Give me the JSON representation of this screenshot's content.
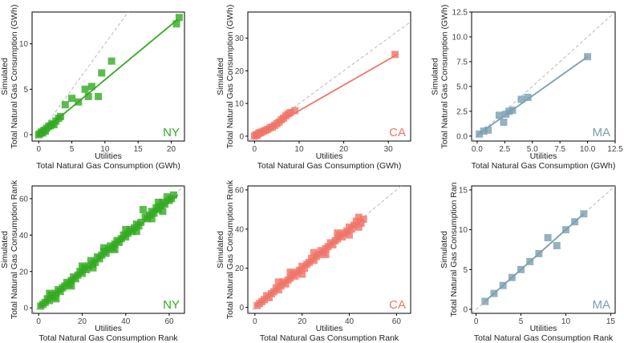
{
  "chart_data": [
    {
      "type": "scatter",
      "state": "NY",
      "color": "#33aa22",
      "xlabel_top": "Utilities",
      "xlabel_bottom": "Total Natural Gas Consumption (GWh)",
      "ylabel_top": "Simulated",
      "ylabel_bottom": "Total Natural Gas Consumption (GWh)",
      "xlim": [
        -1,
        22
      ],
      "ylim": [
        -0.7,
        13.5
      ],
      "xticks": [
        0,
        5,
        10,
        15,
        20
      ],
      "yticks": [
        0,
        5,
        10
      ],
      "fit": [
        [
          0,
          0
        ],
        [
          21,
          12.7
        ]
      ],
      "points": [
        [
          0,
          0
        ],
        [
          0.2,
          0.1
        ],
        [
          0.4,
          0.3
        ],
        [
          0.6,
          0.2
        ],
        [
          0.8,
          0.5
        ],
        [
          1,
          0.4
        ],
        [
          1.2,
          0.7
        ],
        [
          1.5,
          0.9
        ],
        [
          1.8,
          1.0
        ],
        [
          2,
          1.2
        ],
        [
          2.3,
          1.1
        ],
        [
          2.6,
          1.5
        ],
        [
          3,
          1.8
        ],
        [
          3.3,
          2.0
        ],
        [
          4,
          3.3
        ],
        [
          5,
          4.0
        ],
        [
          6,
          3.6
        ],
        [
          7,
          5.0
        ],
        [
          7.5,
          4.2
        ],
        [
          8,
          5.3
        ],
        [
          9,
          4.2
        ],
        [
          9.5,
          6.8
        ],
        [
          11,
          8.1
        ],
        [
          20.8,
          12.2
        ],
        [
          21.2,
          12.9
        ]
      ]
    },
    {
      "type": "scatter",
      "state": "CA",
      "color": "#f07468",
      "xlabel_top": "Utilities",
      "xlabel_bottom": "Total Natural Gas Consumption (GWh)",
      "ylabel_top": "Simulated",
      "ylabel_bottom": "Total Natural Gas Consumption (GWh)",
      "xlim": [
        -1.5,
        35
      ],
      "ylim": [
        -1.5,
        38
      ],
      "xticks": [
        0,
        10,
        20,
        30
      ],
      "yticks": [
        0,
        10,
        20,
        30
      ],
      "fit": [
        [
          0,
          0
        ],
        [
          32,
          25
        ]
      ],
      "points": [
        [
          0,
          0
        ],
        [
          0.3,
          0.4
        ],
        [
          0.6,
          0.3
        ],
        [
          0.9,
          0.8
        ],
        [
          1.2,
          1.0
        ],
        [
          1.5,
          1.2
        ],
        [
          2,
          1.5
        ],
        [
          2.5,
          1.8
        ],
        [
          3,
          2.1
        ],
        [
          3.5,
          2.6
        ],
        [
          4,
          2.8
        ],
        [
          4.5,
          3.3
        ],
        [
          5,
          3.8
        ],
        [
          5.5,
          4.3
        ],
        [
          6,
          5.0
        ],
        [
          6.5,
          5.5
        ],
        [
          7,
          6.2
        ],
        [
          7.5,
          6.8
        ],
        [
          8,
          7.2
        ],
        [
          9,
          7.8
        ],
        [
          31.5,
          25
        ]
      ]
    },
    {
      "type": "scatter",
      "state": "MA",
      "color": "#7a9fb0",
      "xlabel_top": "Utilities",
      "xlabel_bottom": "Total Natural Gas Consumption (GWh)",
      "ylabel_top": "Simulated",
      "ylabel_bottom": "Total Natural Gas Consumption (GWh)",
      "xlim": [
        -0.5,
        12.5
      ],
      "ylim": [
        -0.5,
        12.5
      ],
      "xticks": [
        0.0,
        2.5,
        5.0,
        7.5,
        10.0,
        12.5
      ],
      "yticks": [
        0.0,
        2.5,
        5.0,
        7.5,
        10.0,
        12.5
      ],
      "tick_decimals": 1,
      "fit": [
        [
          0,
          0.1
        ],
        [
          10,
          8.0
        ]
      ],
      "points": [
        [
          0.2,
          0.2
        ],
        [
          0.6,
          0.5
        ],
        [
          1.0,
          0.6
        ],
        [
          2.0,
          2.1
        ],
        [
          2.4,
          1.4
        ],
        [
          2.6,
          2.2
        ],
        [
          2.9,
          2.5
        ],
        [
          3.2,
          2.6
        ],
        [
          4.0,
          3.7
        ],
        [
          4.6,
          3.9
        ],
        [
          10.0,
          8.0
        ]
      ]
    },
    {
      "type": "scatter",
      "state": "NY",
      "color": "#33aa22",
      "xlabel_top": "Utilities",
      "xlabel_bottom": "Total Natural Gas Consumption Rank",
      "ylabel_top": "Simulated",
      "ylabel_bottom": "Total Natural Gas Consumption Rank",
      "xlim": [
        -3,
        67
      ],
      "ylim": [
        -3,
        67
      ],
      "xticks": [
        0,
        20,
        40,
        60
      ],
      "yticks": [
        0,
        20,
        40,
        60
      ],
      "fit": [
        [
          0,
          1
        ],
        [
          64,
          62
        ]
      ],
      "points": [
        [
          1,
          1
        ],
        [
          2,
          2
        ],
        [
          3,
          3
        ],
        [
          4,
          5
        ],
        [
          5,
          4
        ],
        [
          6,
          7
        ],
        [
          7,
          6
        ],
        [
          8,
          8
        ],
        [
          9,
          10
        ],
        [
          10,
          9
        ],
        [
          11,
          11
        ],
        [
          12,
          12
        ],
        [
          13,
          14
        ],
        [
          14,
          13
        ],
        [
          15,
          15
        ],
        [
          16,
          17
        ],
        [
          17,
          16
        ],
        [
          18,
          18
        ],
        [
          19,
          20
        ],
        [
          20,
          19
        ],
        [
          21,
          22
        ],
        [
          22,
          21
        ],
        [
          23,
          23
        ],
        [
          24,
          26
        ],
        [
          25,
          24
        ],
        [
          26,
          25
        ],
        [
          27,
          28
        ],
        [
          28,
          27
        ],
        [
          29,
          29
        ],
        [
          30,
          31
        ],
        [
          31,
          30
        ],
        [
          32,
          32
        ],
        [
          33,
          34
        ],
        [
          34,
          33
        ],
        [
          35,
          35
        ],
        [
          36,
          37
        ],
        [
          37,
          36
        ],
        [
          38,
          38
        ],
        [
          39,
          40
        ],
        [
          40,
          39
        ],
        [
          41,
          41
        ],
        [
          42,
          43
        ],
        [
          43,
          42
        ],
        [
          44,
          44
        ],
        [
          45,
          46
        ],
        [
          46,
          45
        ],
        [
          47,
          47
        ],
        [
          48,
          54
        ],
        [
          49,
          50
        ],
        [
          50,
          49
        ],
        [
          51,
          51
        ],
        [
          52,
          53
        ],
        [
          53,
          52
        ],
        [
          54,
          55
        ],
        [
          55,
          54
        ],
        [
          56,
          56
        ],
        [
          57,
          58
        ],
        [
          58,
          57
        ],
        [
          59,
          61
        ],
        [
          60,
          59
        ],
        [
          61,
          60
        ],
        [
          62,
          62
        ],
        [
          5,
          8
        ],
        [
          8,
          5
        ],
        [
          15,
          12
        ],
        [
          20,
          23
        ],
        [
          25,
          22
        ],
        [
          30,
          33
        ],
        [
          35,
          32
        ],
        [
          40,
          43
        ],
        [
          45,
          42
        ],
        [
          52,
          49
        ],
        [
          55,
          58
        ],
        [
          57,
          53
        ]
      ]
    },
    {
      "type": "scatter",
      "state": "CA",
      "color": "#f07468",
      "xlabel_top": "Utilities",
      "xlabel_bottom": "Total Natural Gas Consumption Rank",
      "ylabel_top": "Simulated",
      "ylabel_bottom": "Total Natural Gas Consumption Rank",
      "xlim": [
        -3,
        66
      ],
      "ylim": [
        -3,
        62
      ],
      "xticks": [
        0,
        20,
        40,
        60
      ],
      "yticks": [
        0,
        20,
        40,
        60
      ],
      "fit": [
        [
          0,
          1
        ],
        [
          46,
          45
        ]
      ],
      "points": [
        [
          1,
          1
        ],
        [
          2,
          2
        ],
        [
          3,
          3
        ],
        [
          4,
          4
        ],
        [
          5,
          6
        ],
        [
          6,
          5
        ],
        [
          7,
          7
        ],
        [
          8,
          8
        ],
        [
          9,
          10
        ],
        [
          10,
          9
        ],
        [
          11,
          11
        ],
        [
          12,
          13
        ],
        [
          13,
          12
        ],
        [
          14,
          14
        ],
        [
          15,
          15
        ],
        [
          16,
          17
        ],
        [
          17,
          16
        ],
        [
          18,
          18
        ],
        [
          19,
          19
        ],
        [
          20,
          21
        ],
        [
          21,
          20
        ],
        [
          22,
          22
        ],
        [
          23,
          23
        ],
        [
          24,
          25
        ],
        [
          25,
          24
        ],
        [
          26,
          26
        ],
        [
          27,
          27
        ],
        [
          28,
          29
        ],
        [
          29,
          28
        ],
        [
          30,
          30
        ],
        [
          31,
          31
        ],
        [
          32,
          33
        ],
        [
          33,
          32
        ],
        [
          34,
          34
        ],
        [
          35,
          35
        ],
        [
          36,
          37
        ],
        [
          37,
          36
        ],
        [
          38,
          38
        ],
        [
          39,
          39
        ],
        [
          40,
          41
        ],
        [
          41,
          40
        ],
        [
          42,
          42
        ],
        [
          43,
          44
        ],
        [
          44,
          46
        ],
        [
          45,
          43
        ],
        [
          46,
          45
        ],
        [
          10,
          13
        ],
        [
          15,
          18
        ],
        [
          20,
          17
        ],
        [
          25,
          28
        ],
        [
          30,
          27
        ],
        [
          35,
          38
        ],
        [
          40,
          37
        ],
        [
          44,
          41
        ]
      ]
    },
    {
      "type": "scatter",
      "state": "MA",
      "color": "#7a9fb0",
      "xlabel_top": "Utilities",
      "xlabel_bottom": "Total Natural Gas Consumption Rank",
      "ylabel_top": "Simulated",
      "ylabel_bottom": "Total Natural Gas Consumption Ran",
      "xlim": [
        -0.5,
        15.5
      ],
      "ylim": [
        -0.5,
        15.5
      ],
      "xticks": [
        0,
        5,
        10,
        15
      ],
      "yticks": [
        0,
        5,
        10,
        15
      ],
      "fit": [
        [
          1,
          1
        ],
        [
          12,
          12
        ]
      ],
      "points": [
        [
          1,
          1
        ],
        [
          2,
          2
        ],
        [
          3,
          3
        ],
        [
          4,
          4
        ],
        [
          5,
          5
        ],
        [
          6,
          6
        ],
        [
          7,
          7
        ],
        [
          8,
          9
        ],
        [
          9,
          8
        ],
        [
          10,
          10
        ],
        [
          11,
          11
        ],
        [
          12,
          12
        ]
      ]
    }
  ]
}
